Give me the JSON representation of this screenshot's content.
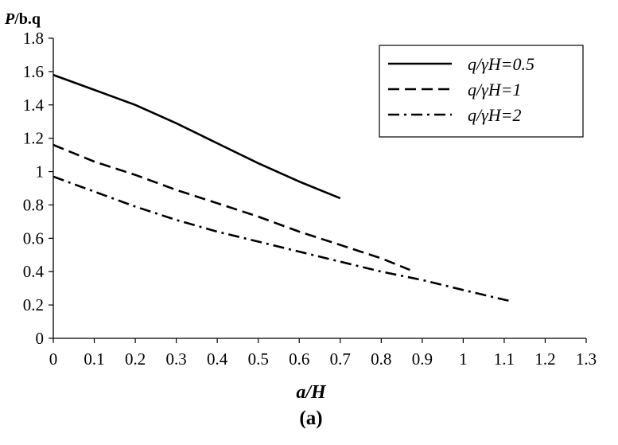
{
  "chart_data": {
    "type": "line",
    "ylabel_var": "P",
    "ylabel_unit": "/b.q",
    "xlabel": "a/H",
    "caption": "(a)",
    "xlim": [
      0,
      1.3
    ],
    "ylim": [
      0,
      1.8
    ],
    "xticks": [
      "0",
      "0.1",
      "0.2",
      "0.3",
      "0.4",
      "0.5",
      "0.6",
      "0.7",
      "0.8",
      "0.9",
      "1",
      "1.1",
      "1.2",
      "1.3"
    ],
    "yticks": [
      "0",
      "0.2",
      "0.4",
      "0.6",
      "0.8",
      "1",
      "1.2",
      "1.4",
      "1.6",
      "1.8"
    ],
    "legend_position": "top-right",
    "grid": false,
    "series": [
      {
        "name": "q/γH=0.5",
        "style": "solid",
        "x": [
          0,
          0.1,
          0.2,
          0.3,
          0.4,
          0.5,
          0.6,
          0.7
        ],
        "y": [
          1.58,
          1.49,
          1.4,
          1.29,
          1.17,
          1.05,
          0.94,
          0.84
        ]
      },
      {
        "name": "q/γH=1",
        "style": "dashed",
        "x": [
          0,
          0.1,
          0.2,
          0.3,
          0.4,
          0.5,
          0.6,
          0.7,
          0.8,
          0.87
        ],
        "y": [
          1.16,
          1.06,
          0.98,
          0.89,
          0.81,
          0.73,
          0.64,
          0.56,
          0.48,
          0.41
        ]
      },
      {
        "name": "q/γH=2",
        "style": "dashdot",
        "x": [
          0,
          0.1,
          0.2,
          0.3,
          0.4,
          0.5,
          0.6,
          0.7,
          0.8,
          0.9,
          1.0,
          1.12
        ],
        "y": [
          0.97,
          0.88,
          0.79,
          0.71,
          0.64,
          0.58,
          0.52,
          0.46,
          0.4,
          0.35,
          0.29,
          0.22
        ]
      }
    ],
    "colors": {
      "line": "#000000",
      "background": "#ffffff"
    }
  }
}
